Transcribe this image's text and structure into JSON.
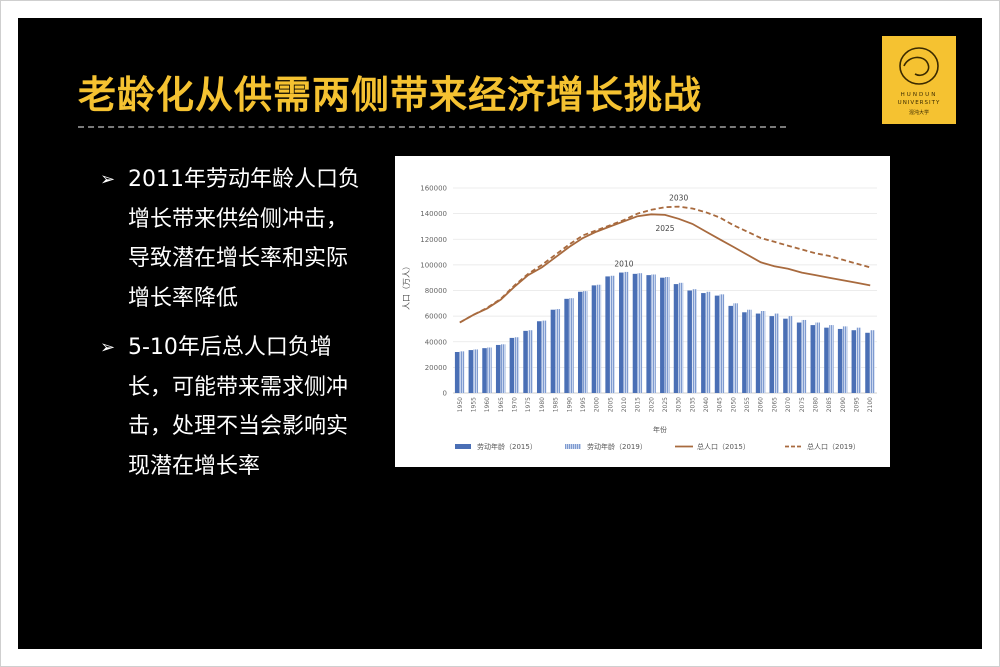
{
  "slide": {
    "title": "老龄化从供需两侧带来经济增长挑战",
    "bullets": [
      {
        "text": "2011年劳动年龄人口负增长带来供给侧冲击，导致潜在增长率和实际增长率降低"
      },
      {
        "text": "5-10年后总人口负增长，可能带来需求侧冲击，处理不当会影响实现潜在增长率"
      }
    ],
    "bullet_marker": "➢",
    "logo": {
      "line1": "HUNDUN",
      "line2": "UNIVERSITY",
      "line3": "混沌大学",
      "icon": "circle-swirl-logo-icon",
      "color": "#f5c231"
    },
    "accent_color": "#f5c231"
  },
  "chart_data": {
    "type": "bar",
    "title": "",
    "xlabel": "年份",
    "ylabel": "人口（万人）",
    "ylim": [
      0,
      160000
    ],
    "yticks": [
      0,
      20000,
      40000,
      60000,
      80000,
      100000,
      120000,
      140000,
      160000
    ],
    "grid": true,
    "legend_position": "bottom",
    "categories": [
      "1950",
      "1955",
      "1960",
      "1965",
      "1970",
      "1975",
      "1980",
      "1985",
      "1990",
      "1995",
      "2000",
      "2005",
      "2010",
      "2015",
      "2020",
      "2025",
      "2030",
      "2035",
      "2040",
      "2045",
      "2050",
      "2055",
      "2060",
      "2065",
      "2070",
      "2075",
      "2080",
      "2085",
      "2090",
      "2095",
      "2100"
    ],
    "series": [
      {
        "name": "劳动年龄（2015）",
        "kind": "bar",
        "style": "solid",
        "color": "#4a6fb5",
        "values": [
          32000,
          33500,
          35000,
          37500,
          43000,
          48500,
          56000,
          65000,
          73500,
          79000,
          84000,
          91000,
          94000,
          93000,
          92000,
          90000,
          85000,
          80000,
          78000,
          76000,
          68000,
          63000,
          62000,
          60000,
          58000,
          55000,
          53000,
          51000,
          50000,
          49000,
          47000
        ]
      },
      {
        "name": "劳动年龄（2019）",
        "kind": "bar",
        "style": "hatched",
        "color": "#8fa8d6",
        "values": [
          32500,
          34000,
          35500,
          38000,
          43500,
          49000,
          56500,
          65500,
          74000,
          79500,
          84500,
          91500,
          94500,
          93500,
          92500,
          90500,
          86000,
          81000,
          79000,
          77000,
          70000,
          65000,
          64000,
          62000,
          60000,
          57000,
          55000,
          53000,
          52000,
          51000,
          49000
        ]
      },
      {
        "name": "总人口（2015）",
        "kind": "line",
        "style": "solid",
        "color": "#a86a3e",
        "values": [
          55000,
          61000,
          66000,
          73000,
          83000,
          92000,
          98000,
          106000,
          114000,
          121000,
          126000,
          130000,
          134000,
          138000,
          139500,
          139000,
          136000,
          132000,
          126000,
          120000,
          114000,
          108000,
          102000,
          99000,
          97000,
          94000,
          92000,
          90000,
          88000,
          86000,
          84000
        ]
      },
      {
        "name": "总人口（2019）",
        "kind": "line",
        "style": "dashed",
        "color": "#a86a3e",
        "values": [
          55000,
          61000,
          66500,
          73500,
          84000,
          93000,
          100000,
          108000,
          116000,
          123000,
          127000,
          131000,
          135000,
          140000,
          143000,
          145000,
          145500,
          144000,
          141000,
          137000,
          131000,
          126000,
          121000,
          118000,
          115000,
          112000,
          109000,
          107000,
          104000,
          101000,
          98000
        ]
      }
    ],
    "annotations": [
      {
        "text": "2030",
        "x": "2030",
        "series": "总人口（2019）"
      },
      {
        "text": "2025",
        "x": "2025",
        "series": "总人口（2015）"
      },
      {
        "text": "2010",
        "x": "2010",
        "series": "劳动年龄（2015）"
      }
    ]
  }
}
